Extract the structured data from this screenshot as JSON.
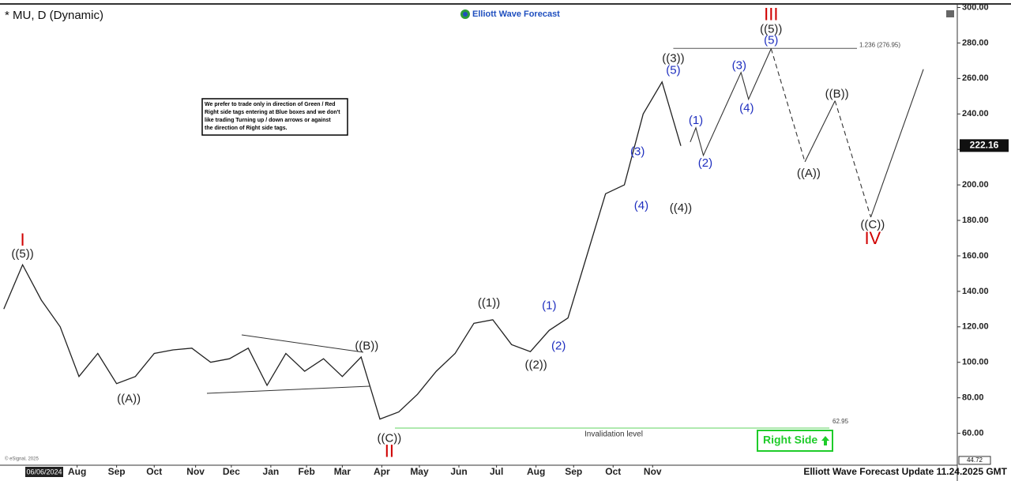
{
  "chart_data": {
    "type": "line",
    "title": "* MU, D (Dynamic)",
    "logo_text": "Elliott Wave Forecast",
    "note_lines": [
      "We prefer to trade only in direction of Green / Red",
      "Right side tags entering at Blue boxes and we don't",
      "like trading Turning up / down arrows or against",
      "the direction of Right side tags."
    ],
    "footer": "Elliott Wave Forecast Update 11.24.2025 GMT",
    "right_side_label": "Right Side",
    "copyright": "© eSignal, 2025",
    "start_date": "06/06/2024",
    "last_price": 222.16,
    "axis_min_label": 44.72,
    "fib_level": 276.95,
    "fib_label": "1.236 (276.95)",
    "invalidation_level": 62.95,
    "invalidation_text": "Invalidation level",
    "xlim": [
      -0.2,
      50.7
    ],
    "ylim": [
      42,
      302
    ],
    "xticks": [
      {
        "value": 3.9,
        "label": "Aug"
      },
      {
        "value": 6.0,
        "label": "Sep"
      },
      {
        "value": 8.0,
        "label": "Oct"
      },
      {
        "value": 10.2,
        "label": "Nov"
      },
      {
        "value": 12.1,
        "label": "Dec"
      },
      {
        "value": 14.2,
        "label": "Jan"
      },
      {
        "value": 16.1,
        "label": "Feb"
      },
      {
        "value": 18.0,
        "label": "Mar"
      },
      {
        "value": 20.1,
        "label": "Apr"
      },
      {
        "value": 22.1,
        "label": "May"
      },
      {
        "value": 24.2,
        "label": "Jun"
      },
      {
        "value": 26.2,
        "label": "Jul"
      },
      {
        "value": 28.3,
        "label": "Aug"
      },
      {
        "value": 30.3,
        "label": "Sep"
      },
      {
        "value": 32.4,
        "label": "Oct"
      },
      {
        "value": 34.5,
        "label": "Nov"
      }
    ],
    "yticks": [
      {
        "value": 60,
        "label": "60.00"
      },
      {
        "value": 80,
        "label": "80.00"
      },
      {
        "value": 100,
        "label": "100.00"
      },
      {
        "value": 120,
        "label": "120.00"
      },
      {
        "value": 140,
        "label": "140.00"
      },
      {
        "value": 160,
        "label": "160.00"
      },
      {
        "value": 180,
        "label": "180.00"
      },
      {
        "value": 200,
        "label": "200.00"
      },
      {
        "value": 220,
        "label": "220.00"
      },
      {
        "value": 240,
        "label": "240.00"
      },
      {
        "value": 260,
        "label": "260.00"
      },
      {
        "value": 280,
        "label": "280.00"
      },
      {
        "value": 300,
        "label": "300.00"
      }
    ],
    "price": {
      "color": "#222222",
      "x": [
        0,
        1,
        2,
        3,
        4,
        5,
        6,
        7,
        8,
        9,
        10,
        11,
        12,
        13,
        14,
        15,
        16,
        17,
        18,
        19,
        20,
        21,
        22,
        23,
        24,
        25,
        26,
        27,
        28,
        29,
        30,
        31,
        32,
        33,
        34,
        35,
        36
      ],
      "values": [
        130,
        155,
        135,
        120,
        92,
        105,
        88,
        92,
        105,
        107,
        108,
        100,
        102,
        108,
        87,
        105,
        95,
        102,
        92,
        103,
        68,
        72,
        82,
        95,
        105,
        122,
        124,
        110,
        106,
        118,
        125,
        160,
        195,
        200,
        240,
        258,
        222
      ]
    },
    "projection": [
      {
        "dashed": false,
        "x": [
          36.5,
          36.8,
          37.2,
          39.2,
          39.6,
          40.8
        ],
        "values": [
          224.2,
          232.2,
          216.6,
          263.4,
          248.3,
          276.8
        ]
      },
      {
        "dashed": true,
        "x": [
          40.8,
          42.6
        ],
        "values": [
          276.8,
          213.0
        ]
      },
      {
        "dashed": false,
        "x": [
          42.6,
          44.2
        ],
        "values": [
          213.0,
          247.4
        ]
      },
      {
        "dashed": true,
        "x": [
          44.2,
          46.1
        ],
        "values": [
          247.4,
          181.8
        ]
      },
      {
        "dashed": false,
        "x": [
          46.1,
          48.9
        ],
        "values": [
          181.8,
          265.2
        ]
      }
    ],
    "annotations": [
      {
        "text": "I",
        "x": 1.0,
        "y": 168.4,
        "color": "#d00000"
      },
      {
        "text": "((5))",
        "x": 1.0,
        "y": 160.8,
        "color": "#222222"
      },
      {
        "text": "((A))",
        "x": 6.65,
        "y": 79.2,
        "color": "#222222"
      },
      {
        "text": "((B))",
        "x": 19.3,
        "y": 109.1,
        "color": "#222222"
      },
      {
        "text": "((C))",
        "x": 20.5,
        "y": 56.9,
        "color": "#222222"
      },
      {
        "text": "II",
        "x": 20.5,
        "y": 49.3,
        "color": "#d00000"
      },
      {
        "text": "((1))",
        "x": 25.8,
        "y": 133.2,
        "color": "#222222"
      },
      {
        "text": "((2))",
        "x": 28.3,
        "y": 98.4,
        "color": "#222222"
      },
      {
        "text": "(1)",
        "x": 29.0,
        "y": 131.8,
        "color": "#1f2fbf"
      },
      {
        "text": "(2)",
        "x": 29.5,
        "y": 109.1,
        "color": "#1f2fbf"
      },
      {
        "text": "(3)",
        "x": 33.7,
        "y": 218.4,
        "color": "#1f2fbf"
      },
      {
        "text": "(4)",
        "x": 33.9,
        "y": 188.0,
        "color": "#1f2fbf"
      },
      {
        "text": "((3))",
        "x": 35.6,
        "y": 271.0,
        "color": "#222222"
      },
      {
        "text": "(5)",
        "x": 35.6,
        "y": 264.3,
        "color": "#1f2fbf"
      },
      {
        "text": "((4))",
        "x": 36.0,
        "y": 186.7,
        "color": "#222222"
      },
      {
        "text": "(1)",
        "x": 36.8,
        "y": 236.2,
        "color": "#1f2fbf"
      },
      {
        "text": "(2)",
        "x": 37.3,
        "y": 212.1,
        "color": "#1f2fbf"
      },
      {
        "text": "(3)",
        "x": 39.1,
        "y": 267.0,
        "color": "#1f2fbf"
      },
      {
        "text": "(4)",
        "x": 39.5,
        "y": 242.9,
        "color": "#1f2fbf"
      },
      {
        "text": "III",
        "x": 40.8,
        "y": 295.5,
        "color": "#d00000"
      },
      {
        "text": "((5))",
        "x": 40.8,
        "y": 287.5,
        "color": "#222222"
      },
      {
        "text": "(5)",
        "x": 40.8,
        "y": 281.3,
        "color": "#1f2fbf"
      },
      {
        "text": "((B))",
        "x": 44.3,
        "y": 250.9,
        "color": "#222222"
      },
      {
        "text": "((A))",
        "x": 42.8,
        "y": 206.3,
        "color": "#222222"
      },
      {
        "text": "((C))",
        "x": 46.2,
        "y": 177.3,
        "color": "#222222"
      },
      {
        "text": "IV",
        "x": 46.2,
        "y": 169.3,
        "color": "#d00000"
      }
    ]
  }
}
